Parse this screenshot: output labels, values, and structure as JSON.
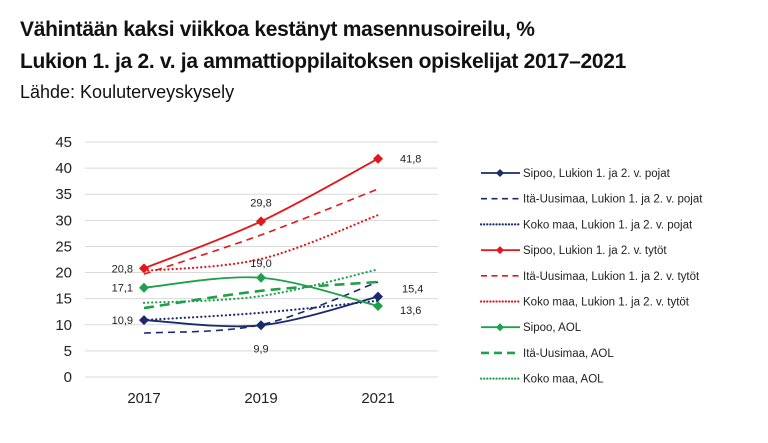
{
  "chart_data": {
    "type": "line",
    "title": "Vähintään kaksi viikkoa kestänyt masennusoireilu, %",
    "subtitle": "Lukion 1. ja 2. v. ja ammattioppilaitoksen opiskelijat 2017–2021",
    "source": "Lähde: Kouluterveyskysely",
    "xlabel": "",
    "ylabel": "",
    "x": [
      "2017",
      "2019",
      "2021"
    ],
    "ylim": [
      0,
      45
    ],
    "yticks": [
      "0",
      "5",
      "10",
      "15",
      "20",
      "25",
      "30",
      "35",
      "40",
      "45"
    ],
    "grid": true,
    "legend": "right",
    "series": [
      {
        "name": "Sipoo, Lukion 1. ja 2. v. pojat",
        "values": [
          10.9,
          9.9,
          15.4
        ],
        "labels": [
          "10,9",
          "9,9",
          "15,4"
        ],
        "color": "#1a2a6c",
        "style": "solid",
        "marker": true
      },
      {
        "name": "Itä-Uusimaa, Lukion 1. ja 2. v. pojat",
        "values": [
          8.4,
          10.0,
          18.2
        ],
        "color": "#1a2a6c",
        "style": "dashed",
        "marker": false
      },
      {
        "name": "Koko maa, Lukion 1. ja 2. v. pojat",
        "values": [
          10.9,
          12.3,
          14.6
        ],
        "color": "#1a2a6c",
        "style": "dotted",
        "marker": false
      },
      {
        "name": "Sipoo, Lukion 1. ja 2. v. tytöt",
        "values": [
          20.8,
          29.8,
          41.8
        ],
        "labels": [
          "20,8",
          "29,8",
          "41,8"
        ],
        "color": "#e3161b",
        "style": "solid",
        "marker": true
      },
      {
        "name": "Itä-Uusimaa, Lukion 1. ja 2. v. tytöt",
        "values": [
          19.7,
          27.2,
          36.0
        ],
        "color": "#e3161b",
        "style": "dashed",
        "marker": false
      },
      {
        "name": "Koko maa, Lukion 1. ja 2. v. tytöt",
        "values": [
          20.3,
          22.6,
          31.0
        ],
        "color": "#e3161b",
        "style": "dotted",
        "marker": false
      },
      {
        "name": "Sipoo, AOL",
        "values": [
          17.1,
          19.0,
          13.6
        ],
        "labels": [
          "17,1",
          "19,0",
          "13,6"
        ],
        "color": "#1fa04a",
        "style": "solid",
        "marker": true
      },
      {
        "name": "Itä-Uusimaa, AOL",
        "values": [
          13.2,
          16.5,
          18.2
        ],
        "color": "#1fa04a",
        "style": "dashed-thick",
        "marker": false
      },
      {
        "name": "Koko maa, AOL",
        "values": [
          14.2,
          15.5,
          20.6
        ],
        "color": "#1fa04a",
        "style": "dotted",
        "marker": false
      }
    ]
  }
}
